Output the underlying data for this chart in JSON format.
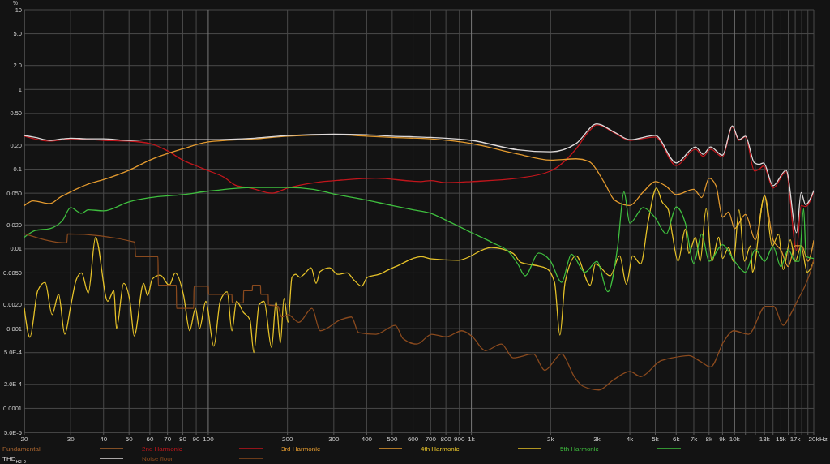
{
  "chart_data": {
    "type": "line",
    "ylabel": "%",
    "xlabel": "Hz",
    "log": "xy",
    "grid": true,
    "legend": "bottom",
    "xlim": [
      20,
      20000
    ],
    "ylim": [
      5e-05,
      10
    ],
    "xticks": [
      20,
      30,
      40,
      50,
      60,
      70,
      80,
      90,
      100,
      200,
      300,
      400,
      500,
      600,
      700,
      800,
      900,
      {
        "value": 1000,
        "label": "1k"
      },
      {
        "value": 2000,
        "label": "2k"
      },
      {
        "value": 3000,
        "label": "3k"
      },
      {
        "value": 4000,
        "label": "4k"
      },
      {
        "value": 5000,
        "label": "5k"
      },
      {
        "value": 6000,
        "label": "6k"
      },
      {
        "value": 7000,
        "label": "7k"
      },
      {
        "value": 8000,
        "label": "8k"
      },
      {
        "value": 9000,
        "label": "9k"
      },
      {
        "value": 10000,
        "label": "10k"
      },
      {
        "value": 11000,
        "label": null
      },
      {
        "value": 12000,
        "label": null
      },
      {
        "value": 13000,
        "label": "13k"
      },
      {
        "value": 14000,
        "label": null
      },
      {
        "value": 15000,
        "label": "15k"
      },
      {
        "value": 16000,
        "label": null
      },
      {
        "value": 17000,
        "label": "17k"
      },
      {
        "value": 18000,
        "label": null
      },
      {
        "value": 19000,
        "label": null
      },
      {
        "value": 20000,
        "label": "20k"
      }
    ],
    "yticks": [
      10,
      {
        "value": 5,
        "label": "5.0"
      },
      {
        "value": 2,
        "label": "2.0"
      },
      1,
      {
        "value": 0.5,
        "label": "0.50"
      },
      {
        "value": 0.2,
        "label": "0.20"
      },
      0.1,
      {
        "value": 0.05,
        "label": "0.050"
      },
      {
        "value": 0.02,
        "label": "0.020"
      },
      0.01,
      {
        "value": 0.005,
        "label": "0.0050"
      },
      {
        "value": 0.002,
        "label": "0.0020"
      },
      0.001,
      {
        "value": 0.0005,
        "label": "5.0E-4"
      },
      {
        "value": 0.0002,
        "label": "2.0E-4"
      },
      0.0001,
      {
        "value": 5e-05,
        "label": "5.0E-5"
      }
    ],
    "series": [
      {
        "name": "Fundamental",
        "color": "#a8642e"
      },
      {
        "name": "2nd Harmonic",
        "color": "#c0161c",
        "x": [
          20,
          25,
          30,
          40,
          50,
          60,
          70,
          80,
          90,
          100,
          115,
          127,
          145,
          175,
          200,
          255,
          320,
          434,
          642,
          700,
          800,
          1000,
          1500,
          2000,
          2500,
          2800,
          3000,
          3500,
          4000,
          5000,
          6000,
          7100,
          7600,
          8100,
          9000,
          9800,
          10400,
          11000,
          11900,
          12400,
          12900,
          14000,
          15700,
          17200,
          17900,
          18600,
          20000
        ],
        "values": [
          0.26,
          0.225,
          0.24,
          0.23,
          0.225,
          0.21,
          0.17,
          0.13,
          0.11,
          0.096,
          0.079,
          0.063,
          0.058,
          0.05,
          0.058,
          0.068,
          0.073,
          0.077,
          0.07,
          0.072,
          0.068,
          0.07,
          0.077,
          0.095,
          0.18,
          0.3,
          0.36,
          0.285,
          0.23,
          0.254,
          0.111,
          0.178,
          0.145,
          0.178,
          0.143,
          0.34,
          0.23,
          0.255,
          0.095,
          0.1,
          0.11,
          0.058,
          0.093,
          0.0096,
          0.035,
          0.034,
          0.052
        ]
      },
      {
        "name": "3rd Harmonic",
        "color": "#e39a2f",
        "x": [
          20,
          21.6,
          25,
          27.5,
          30,
          35,
          40,
          50,
          60,
          80,
          100,
          150,
          200,
          300,
          400,
          500,
          700,
          1000,
          1500,
          2000,
          2500,
          2800,
          3200,
          3500,
          4000,
          4500,
          5000,
          5500,
          6000,
          7000,
          7500,
          8000,
          8500,
          9000,
          9500,
          10000,
          11000,
          12000,
          13000,
          14000,
          15000,
          16000,
          17000,
          18000,
          19000,
          20000
        ],
        "values": [
          0.035,
          0.04,
          0.037,
          0.045,
          0.052,
          0.065,
          0.074,
          0.097,
          0.13,
          0.18,
          0.22,
          0.24,
          0.26,
          0.27,
          0.26,
          0.25,
          0.24,
          0.21,
          0.155,
          0.13,
          0.135,
          0.125,
          0.068,
          0.041,
          0.035,
          0.052,
          0.07,
          0.061,
          0.048,
          0.056,
          0.044,
          0.077,
          0.062,
          0.025,
          0.029,
          0.018,
          0.027,
          0.013,
          0.046,
          0.013,
          0.0097,
          0.006,
          0.011,
          0.011,
          0.007,
          0.0127
        ]
      },
      {
        "name": "4th Harmonic",
        "color": "#e6c229",
        "x": [
          20,
          21,
          22.5,
          24,
          25.5,
          27,
          28.5,
          30,
          31.5,
          33,
          35,
          37.3,
          41.5,
          43.8,
          44.8,
          47.7,
          50.4,
          52.3,
          56.8,
          58.8,
          61.3,
          65.7,
          71.1,
          74.9,
          80.6,
          85,
          89.4,
          92.6,
          97.9,
          105,
          111,
          118,
          123,
          128,
          136,
          144,
          149,
          156,
          163,
          174,
          181,
          188,
          194,
          201,
          208,
          215,
          223,
          231,
          246,
          257,
          266,
          289,
          310,
          337,
          357,
          383,
          402,
          446,
          480,
          532,
          600,
          642,
          707,
          890,
          1190,
          1440,
          1540,
          1760,
          1930,
          2070,
          2170,
          2270,
          2500,
          2830,
          2960,
          3370,
          3660,
          3880,
          4100,
          4400,
          4700,
          5050,
          5300,
          5600,
          5800,
          6100,
          6500,
          6700,
          7100,
          7400,
          7800,
          8200,
          8700,
          9000,
          9500,
          9900,
          10400,
          10900,
          11500,
          11700,
          13000,
          13900,
          14700,
          15300,
          16300,
          17000,
          17900,
          18900,
          20000
        ],
        "values": [
          0.0018,
          0.00078,
          0.003,
          0.0038,
          0.0015,
          0.0027,
          0.00085,
          0.0019,
          0.0041,
          0.005,
          0.0028,
          0.014,
          0.0022,
          0.003,
          0.001,
          0.0037,
          0.0022,
          0.00081,
          0.0037,
          0.0026,
          0.0042,
          0.0047,
          0.0035,
          0.005,
          0.0026,
          0.00094,
          0.0018,
          0.001,
          0.0022,
          0.0006,
          0.0022,
          0.0029,
          0.00094,
          0.0022,
          0.0016,
          0.0013,
          0.0005,
          0.002,
          0.0022,
          0.00058,
          0.0022,
          0.00066,
          0.0024,
          0.0012,
          0.0044,
          0.0048,
          0.0044,
          0.0048,
          0.0058,
          0.0037,
          0.0052,
          0.0058,
          0.0048,
          0.005,
          0.0041,
          0.0034,
          0.0044,
          0.0048,
          0.0054,
          0.0063,
          0.0076,
          0.008,
          0.0075,
          0.0072,
          0.0104,
          0.0088,
          0.0068,
          0.0062,
          0.0057,
          0.0038,
          0.00083,
          0.0038,
          0.0082,
          0.0035,
          0.0065,
          0.0046,
          0.0082,
          0.0036,
          0.0082,
          0.0065,
          0.0225,
          0.058,
          0.039,
          0.031,
          0.0153,
          0.007,
          0.0177,
          0.0088,
          0.014,
          0.007,
          0.032,
          0.007,
          0.014,
          0.0076,
          0.0104,
          0.007,
          0.031,
          0.007,
          0.011,
          0.0051,
          0.047,
          0.0108,
          0.0153,
          0.0055,
          0.013,
          0.007,
          0.0108,
          0.0051,
          0.007
        ]
      },
      {
        "name": "5th Harmonic",
        "color": "#3fbf3f",
        "x": [
          20,
          22,
          25,
          28,
          30,
          33,
          35,
          40,
          50,
          60,
          80,
          100,
          150,
          200,
          250,
          300,
          400,
          500,
          600,
          700,
          800,
          1000,
          1200,
          1400,
          1500,
          1600,
          1800,
          2000,
          2200,
          2400,
          2700,
          3000,
          3300,
          3600,
          3800,
          4000,
          4500,
          5000,
          5500,
          6000,
          6500,
          7000,
          7500,
          8000,
          9000,
          10000,
          11000,
          12000,
          13000,
          14000,
          15000,
          16000,
          17000,
          17600,
          18300,
          18700,
          20000
        ],
        "values": [
          0.014,
          0.017,
          0.018,
          0.023,
          0.033,
          0.028,
          0.031,
          0.03,
          0.039,
          0.044,
          0.048,
          0.053,
          0.059,
          0.059,
          0.056,
          0.049,
          0.041,
          0.035,
          0.031,
          0.028,
          0.023,
          0.016,
          0.012,
          0.0089,
          0.0065,
          0.0046,
          0.0089,
          0.007,
          0.0038,
          0.0086,
          0.0051,
          0.007,
          0.0029,
          0.011,
          0.052,
          0.021,
          0.033,
          0.0245,
          0.0154,
          0.0335,
          0.021,
          0.0066,
          0.0154,
          0.007,
          0.0113,
          0.007,
          0.0051,
          0.0098,
          0.007,
          0.0107,
          0.006,
          0.0098,
          0.007,
          0.007,
          0.032,
          0.008,
          0.0076
        ]
      },
      {
        "name": "THD$_{H2-9}$",
        "color": "#dedada",
        "x": [
          20,
          22,
          25,
          28,
          30,
          35,
          40,
          50,
          60,
          80,
          100,
          150,
          200,
          300,
          400,
          500,
          700,
          1000,
          1500,
          2000,
          2500,
          3000,
          3500,
          4000,
          5000,
          6000,
          7100,
          7600,
          8100,
          9000,
          9800,
          10400,
          11000,
          11900,
          12400,
          12900,
          14000,
          15700,
          17200,
          17900,
          18600,
          20000
        ],
        "values": [
          0.265,
          0.25,
          0.23,
          0.24,
          0.245,
          0.24,
          0.24,
          0.23,
          0.235,
          0.235,
          0.235,
          0.245,
          0.264,
          0.275,
          0.27,
          0.26,
          0.25,
          0.23,
          0.175,
          0.165,
          0.21,
          0.37,
          0.29,
          0.235,
          0.265,
          0.12,
          0.19,
          0.154,
          0.19,
          0.15,
          0.35,
          0.235,
          0.26,
          0.12,
          0.115,
          0.12,
          0.062,
          0.097,
          0.016,
          0.051,
          0.036,
          0.054
        ]
      },
      {
        "name": "Noise floor",
        "color": "#8a4a1e",
        "x": [
          20,
          29,
          29.2,
          52.5,
          53,
          64.4,
          64.6,
          75.6,
          75.8,
          88,
          88.3,
          100,
          100.3,
          123,
          123.3,
          136,
          136.3,
          147,
          147.3,
          158,
          158.3,
          169,
          169.3,
          184,
          190,
          201,
          221,
          248,
          266,
          320,
          350,
          373,
          434,
          514,
          550,
          620,
          707,
          800,
          920,
          1010,
          1130,
          1300,
          1440,
          1720,
          1900,
          2200,
          2460,
          2650,
          3050,
          3480,
          4000,
          4400,
          5200,
          5800,
          6700,
          7400,
          8100,
          9100,
          9900,
          11300,
          13100,
          14100,
          15300,
          16300,
          17400,
          18700,
          19700,
          20000
        ],
        "values": [
          0.0155,
          0.0119,
          0.0154,
          0.0122,
          0.008,
          0.008,
          0.0035,
          0.0035,
          0.0018,
          0.0018,
          0.0034,
          0.0034,
          0.0027,
          0.0027,
          0.0021,
          0.0021,
          0.003,
          0.003,
          0.0035,
          0.0035,
          0.0027,
          0.0027,
          0.002,
          0.0019,
          0.0014,
          0.0015,
          0.0012,
          0.0018,
          0.00094,
          0.0013,
          0.0014,
          0.00089,
          0.00085,
          0.0011,
          0.00075,
          0.00064,
          0.00085,
          0.00079,
          0.00094,
          0.00079,
          0.00053,
          0.00064,
          0.00043,
          0.00048,
          0.0003,
          0.00048,
          0.00025,
          0.00019,
          0.00017,
          0.00023,
          0.00029,
          0.00025,
          0.00039,
          0.00043,
          0.00046,
          0.00039,
          0.00033,
          0.00069,
          0.00094,
          0.00085,
          0.0019,
          0.0019,
          0.0011,
          0.0015,
          0.0023,
          0.0037,
          0.006,
          0.0074
        ]
      }
    ]
  }
}
